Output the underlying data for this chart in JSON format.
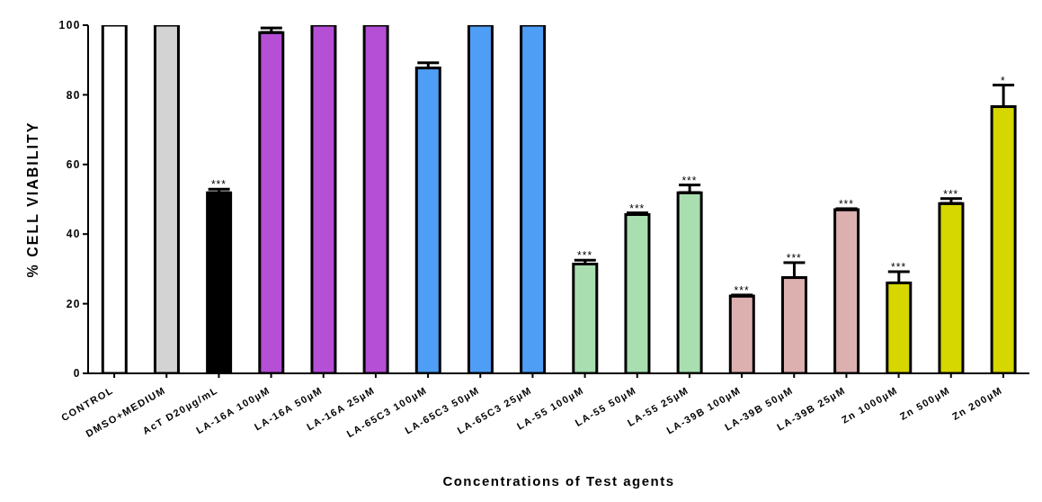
{
  "chart_data": {
    "type": "bar",
    "xlabel": "Concentrations of Test agents",
    "ylabel": "% CELL VIABILITY",
    "categories": [
      "CONTROL",
      "DMSO+MEDIUM",
      "AcT D20µg/mL",
      "LA-16A 100µM",
      "LA-16A 50µM",
      "LA-16A 25µM",
      "LA-65C3 100µM",
      "LA-65C3 50µM",
      "LA-65C3 25µM",
      "LA-55 100µM",
      "LA-55 50µM",
      "LA-55 25µM",
      "LA-39B 100µM",
      "LA-39B 50µM",
      "LA-39B 25µM",
      "Zn 1000µM",
      "Zn 500µM",
      "Zn 200µM"
    ],
    "values": [
      100,
      100,
      51.9,
      97.9,
      100,
      100,
      87.7,
      100,
      100,
      31.4,
      45.6,
      51.9,
      22.2,
      27.5,
      47,
      26,
      48.8,
      76.6
    ],
    "errors": [
      null,
      null,
      [
        51.9,
        52.9
      ],
      [
        97.9,
        99.2
      ],
      null,
      null,
      [
        87.7,
        89.2
      ],
      null,
      null,
      [
        31.4,
        32.5
      ],
      [
        45.6,
        46.1
      ],
      [
        51.9,
        54.1
      ],
      [
        22.2,
        22.5
      ],
      [
        27.5,
        31.8
      ],
      [
        47,
        47.3
      ],
      [
        26,
        29.2
      ],
      [
        48.8,
        50.2
      ],
      [
        76.6,
        82.8
      ]
    ],
    "colors": [
      "#ffffff",
      "#d3d3d3",
      "#000000",
      "#b44fd6",
      "#b44fd6",
      "#b44fd6",
      "#4f9ef5",
      "#4f9ef5",
      "#4f9ef5",
      "#a8deb0",
      "#a8deb0",
      "#a8deb0",
      "#ddb0b0",
      "#ddb0b0",
      "#ddb0b0",
      "#d6d600",
      "#d6d600",
      "#d6d600"
    ],
    "ylim": [
      0,
      100
    ],
    "yticks": [
      0,
      20,
      40,
      60,
      80,
      100
    ],
    "grid": false,
    "legend": false,
    "annotations": [
      {
        "text": "***",
        "x": "AcT D20µg/mL",
        "y": 52.9
      },
      {
        "text": "***",
        "x": "LA-55 100µM",
        "y": 32.5
      },
      {
        "text": "***",
        "x": "LA-55 50µM",
        "y": 46.1
      },
      {
        "text": "***",
        "x": "LA-55 25µM",
        "y": 54.1
      },
      {
        "text": "***",
        "x": "LA-39B 100µM",
        "y": 22.5
      },
      {
        "text": "***",
        "x": "LA-39B 50µM",
        "y": 31.8
      },
      {
        "text": "***",
        "x": "LA-39B 25µM",
        "y": 47.3
      },
      {
        "text": "***",
        "x": "Zn 1000µM",
        "y": 29.2
      },
      {
        "text": "***",
        "x": "Zn 500µM",
        "y": 50.2
      },
      {
        "text": "*",
        "x": "Zn 200µM",
        "y": 82.8
      }
    ]
  }
}
